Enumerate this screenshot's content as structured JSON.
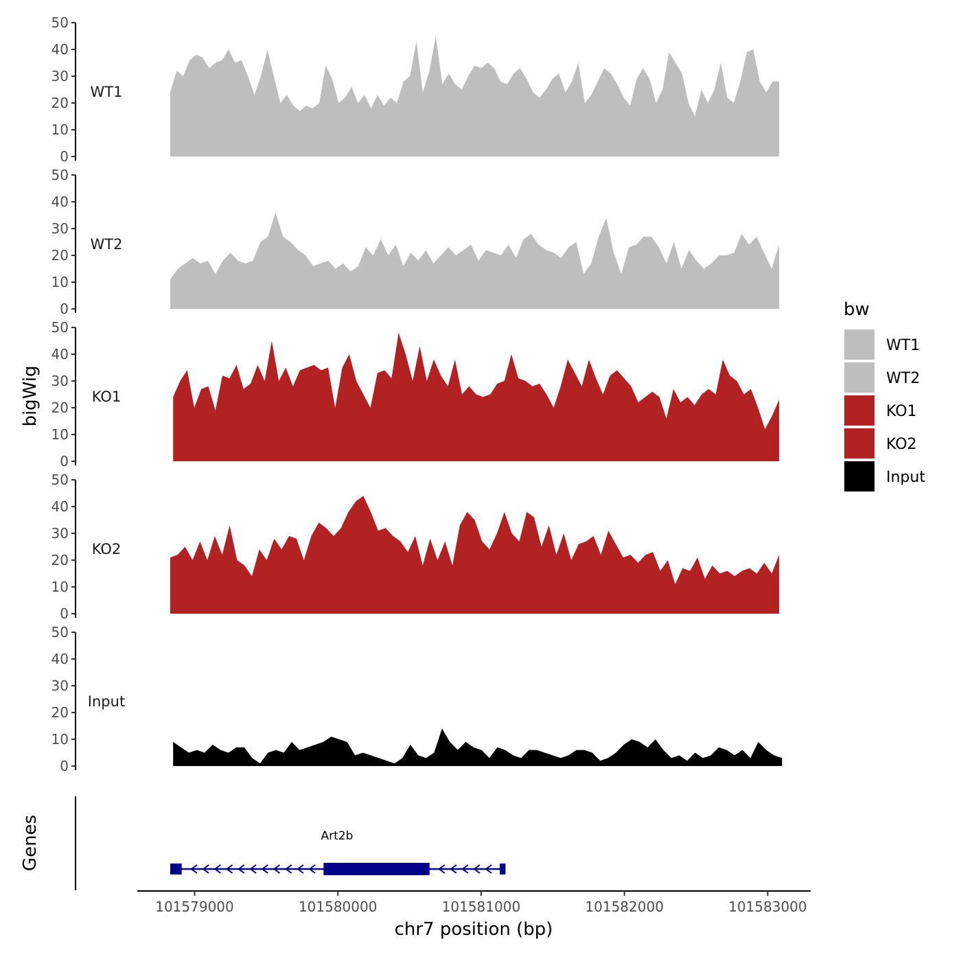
{
  "chart_data": {
    "type": "area",
    "ylabel": "bigWig",
    "xlabel": "chr7 position (bp)",
    "ylim": [
      0,
      50
    ],
    "yticks": [
      0,
      10,
      20,
      30,
      40,
      50
    ],
    "xlim": [
      101578600,
      101583300
    ],
    "xticks": [
      101579000,
      101580000,
      101581000,
      101582000,
      101583000
    ],
    "legend": {
      "title": "bw",
      "position": "right",
      "items": [
        {
          "label": "WT1",
          "color": "#bebebe"
        },
        {
          "label": "WT2",
          "color": "#bebebe"
        },
        {
          "label": "KO1",
          "color": "#b22222"
        },
        {
          "label": "KO2",
          "color": "#b22222"
        },
        {
          "label": "Input",
          "color": "#000000"
        }
      ]
    },
    "series": [
      {
        "name": "WT1",
        "color": "#bebebe",
        "x_start": 101578830,
        "x_end": 101583080,
        "y": [
          24,
          32,
          30,
          36,
          38,
          37,
          33,
          35,
          36,
          40,
          35,
          36,
          30,
          23,
          30,
          40,
          30,
          20,
          23,
          19,
          17,
          19,
          18,
          20,
          34,
          29,
          20,
          22,
          26,
          20,
          23,
          18,
          23,
          19,
          22,
          20,
          28,
          30,
          43,
          24,
          32,
          45,
          27,
          31,
          27,
          25,
          30,
          34,
          33,
          35,
          33,
          28,
          27,
          31,
          33,
          29,
          24,
          22,
          25,
          29,
          31,
          24,
          28,
          35,
          20,
          23,
          28,
          33,
          31,
          27,
          22,
          19,
          29,
          33,
          29,
          20,
          25,
          39,
          35,
          31,
          20,
          15,
          25,
          20,
          25,
          35,
          22,
          20,
          28,
          39,
          40,
          28,
          24,
          28,
          28
        ]
      },
      {
        "name": "WT2",
        "color": "#bebebe",
        "x_start": 101578830,
        "x_end": 101583080,
        "y": [
          11,
          15,
          17,
          19,
          17,
          18,
          13,
          18,
          21,
          18,
          17,
          18,
          25,
          27,
          36,
          27,
          25,
          22,
          20,
          16,
          17,
          18,
          15,
          17,
          14,
          16,
          23,
          20,
          26,
          20,
          24,
          16,
          21,
          18,
          22,
          17,
          20,
          23,
          20,
          22,
          24,
          18,
          22,
          21,
          20,
          24,
          19,
          26,
          28,
          24,
          22,
          21,
          19,
          23,
          25,
          13,
          17,
          27,
          34,
          21,
          13,
          23,
          24,
          27,
          27,
          23,
          17,
          25,
          15,
          22,
          18,
          15,
          17,
          20,
          20,
          21,
          28,
          24,
          27,
          21,
          15,
          24
        ]
      },
      {
        "name": "KO1",
        "color": "#b22222",
        "x_start": 101578850,
        "x_end": 101583080,
        "y": [
          24,
          30,
          34,
          20,
          27,
          28,
          19,
          32,
          31,
          36,
          27,
          29,
          36,
          30,
          45,
          30,
          35,
          28,
          34,
          35,
          36,
          34,
          35,
          20,
          35,
          40,
          30,
          25,
          20,
          33,
          34,
          31,
          48,
          40,
          30,
          43,
          30,
          38,
          32,
          28,
          38,
          25,
          28,
          25,
          24,
          25,
          29,
          30,
          40,
          31,
          30,
          28,
          29,
          25,
          20,
          28,
          38,
          33,
          28,
          38,
          31,
          25,
          32,
          34,
          31,
          28,
          22,
          24,
          26,
          24,
          16,
          27,
          22,
          24,
          21,
          25,
          27,
          25,
          38,
          32,
          30,
          25,
          27,
          20,
          12,
          17,
          23
        ]
      },
      {
        "name": "KO2",
        "color": "#b22222",
        "x_start": 101578830,
        "x_end": 101583080,
        "y": [
          21,
          22,
          25,
          20,
          27,
          20,
          29,
          22,
          33,
          20,
          18,
          14,
          24,
          20,
          28,
          24,
          29,
          28,
          20,
          29,
          34,
          32,
          29,
          32,
          38,
          42,
          44,
          38,
          31,
          32,
          29,
          27,
          23,
          29,
          18,
          28,
          20,
          27,
          18,
          33,
          38,
          35,
          27,
          24,
          30,
          38,
          30,
          27,
          38,
          36,
          25,
          33,
          22,
          30,
          20,
          26,
          27,
          29,
          22,
          31,
          26,
          21,
          22,
          19,
          22,
          23,
          16,
          20,
          11,
          17,
          16,
          21,
          13,
          18,
          15,
          16,
          14,
          16,
          17,
          15,
          19,
          15,
          22
        ]
      },
      {
        "name": "Input",
        "color": "#000000",
        "x_start": 101578850,
        "x_end": 101583100,
        "y": [
          9,
          7,
          5,
          6,
          5,
          8,
          6,
          5,
          7,
          7,
          3,
          1,
          5,
          6,
          5,
          9,
          6,
          7,
          8,
          9,
          11,
          10,
          9,
          4,
          5,
          4,
          3,
          2,
          1,
          3,
          8,
          4,
          3,
          5,
          14,
          9,
          6,
          9,
          7,
          6,
          3,
          7,
          6,
          4,
          3,
          6,
          6,
          5,
          4,
          3,
          4,
          6,
          6,
          5,
          2,
          3,
          5,
          8,
          10,
          9,
          7,
          10,
          6,
          3,
          4,
          2,
          5,
          3,
          4,
          7,
          6,
          4,
          6,
          3,
          9,
          6,
          4,
          3
        ]
      }
    ],
    "gene_track": {
      "label": "Genes",
      "gene_name": "Art2b",
      "color": "#00008b",
      "strand": "-",
      "start": 101578830,
      "end": 101581170,
      "exons": [
        [
          101578830,
          101578910
        ],
        [
          101579900,
          101580640
        ],
        [
          101581130,
          101581170
        ]
      ]
    }
  }
}
